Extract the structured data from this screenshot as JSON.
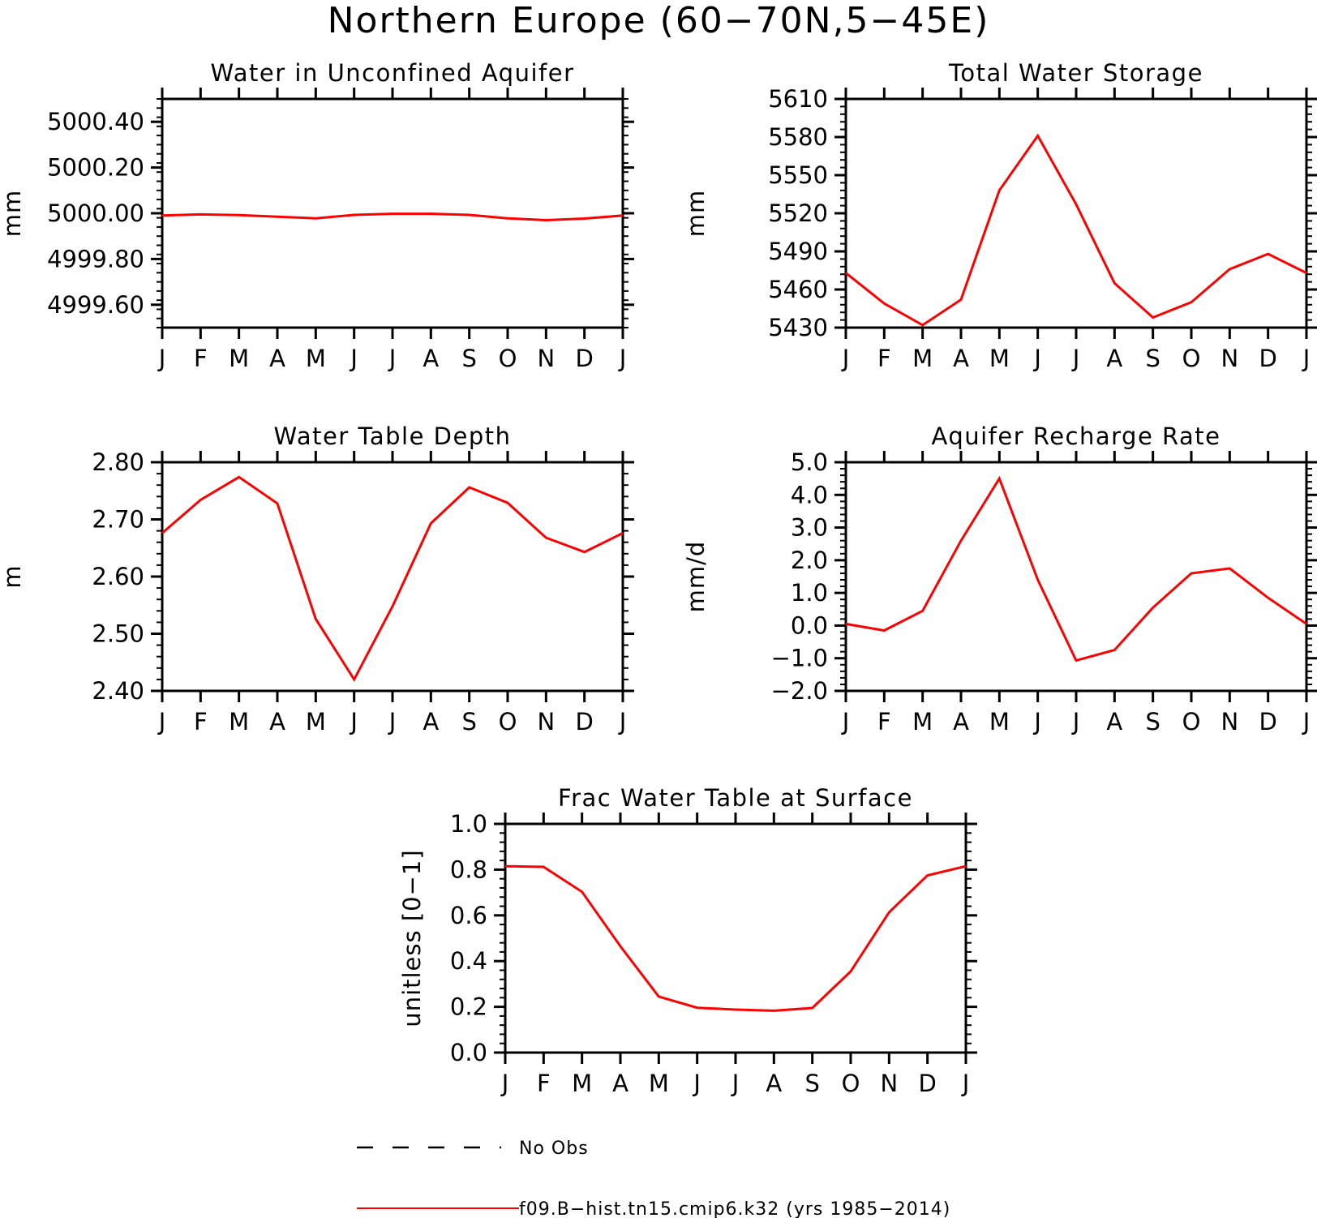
{
  "figure": {
    "title": "Northern Europe (60−70N,5−45E)"
  },
  "chart_data": [
    {
      "type": "line",
      "title": "Water in Unconfined Aquifer",
      "ylabel": "mm",
      "xlabel": "",
      "categories": [
        "J",
        "F",
        "M",
        "A",
        "M",
        "J",
        "J",
        "A",
        "S",
        "O",
        "N",
        "D",
        "J"
      ],
      "yticks": [
        "5000.40",
        "5000.20",
        "5000.00",
        "4999.80",
        "4999.60"
      ],
      "ylim": [
        4999.5,
        5000.5
      ],
      "series": [
        {
          "values": [
            4999.99,
            4999.995,
            4999.992,
            4999.985,
            4999.978,
            4999.993,
            4999.998,
            4999.998,
            4999.993,
            4999.978,
            4999.97,
            4999.977,
            4999.99
          ],
          "color": "#ff0000"
        }
      ]
    },
    {
      "type": "line",
      "title": "Total Water Storage",
      "ylabel": "mm",
      "xlabel": "",
      "categories": [
        "J",
        "F",
        "M",
        "A",
        "M",
        "J",
        "J",
        "A",
        "S",
        "O",
        "N",
        "D",
        "J"
      ],
      "yticks": [
        "5610",
        "5580",
        "5550",
        "5520",
        "5490",
        "5460",
        "5430"
      ],
      "ylim": [
        5430,
        5610
      ],
      "series": [
        {
          "values": [
            5473,
            5449,
            5432,
            5452,
            5538,
            5581,
            5527,
            5465,
            5438,
            5450,
            5476,
            5488,
            5473
          ],
          "color": "#ff0000"
        }
      ]
    },
    {
      "type": "line",
      "title": "Water Table Depth",
      "ylabel": "m",
      "xlabel": "",
      "categories": [
        "J",
        "F",
        "M",
        "A",
        "M",
        "J",
        "J",
        "A",
        "S",
        "O",
        "N",
        "D",
        "J"
      ],
      "yticks": [
        "2.80",
        "2.70",
        "2.60",
        "2.50",
        "2.40"
      ],
      "ylim": [
        2.4,
        2.8
      ],
      "series": [
        {
          "values": [
            2.676,
            2.734,
            2.774,
            2.728,
            2.526,
            2.42,
            2.548,
            2.693,
            2.756,
            2.729,
            2.668,
            2.643,
            2.676
          ],
          "color": "#ff0000"
        }
      ]
    },
    {
      "type": "line",
      "title": "Aquifer Recharge Rate",
      "ylabel": "mm/d",
      "xlabel": "",
      "categories": [
        "J",
        "F",
        "M",
        "A",
        "M",
        "J",
        "J",
        "A",
        "S",
        "O",
        "N",
        "D",
        "J"
      ],
      "yticks": [
        "5.0",
        "4.0",
        "3.0",
        "2.0",
        "1.0",
        "0.0",
        "−1.0",
        "−2.0"
      ],
      "ylim": [
        -2.0,
        5.0
      ],
      "series": [
        {
          "values": [
            0.05,
            -0.15,
            0.45,
            2.6,
            4.5,
            1.4,
            -1.07,
            -0.75,
            0.55,
            1.6,
            1.75,
            0.85,
            0.05
          ],
          "color": "#ff0000"
        }
      ]
    },
    {
      "type": "line",
      "title": "Frac Water Table at Surface",
      "ylabel": "unitless [0−1]",
      "xlabel": "",
      "categories": [
        "J",
        "F",
        "M",
        "A",
        "M",
        "J",
        "J",
        "A",
        "S",
        "O",
        "N",
        "D",
        "J"
      ],
      "yticks": [
        "1.0",
        "0.8",
        "0.6",
        "0.4",
        "0.2",
        "0.0"
      ],
      "ylim": [
        0.0,
        1.0
      ],
      "series": [
        {
          "values": [
            0.815,
            0.812,
            0.703,
            0.465,
            0.245,
            0.196,
            0.188,
            0.183,
            0.195,
            0.355,
            0.613,
            0.775,
            0.815
          ],
          "color": "#ff0000"
        }
      ]
    }
  ],
  "legend": {
    "obs_label": "No Obs",
    "model_label": "f09.B−hist.tn15.cmip6.k32 (yrs 1985−2014)",
    "obs_color": "#000000",
    "model_color": "#ff0000"
  }
}
